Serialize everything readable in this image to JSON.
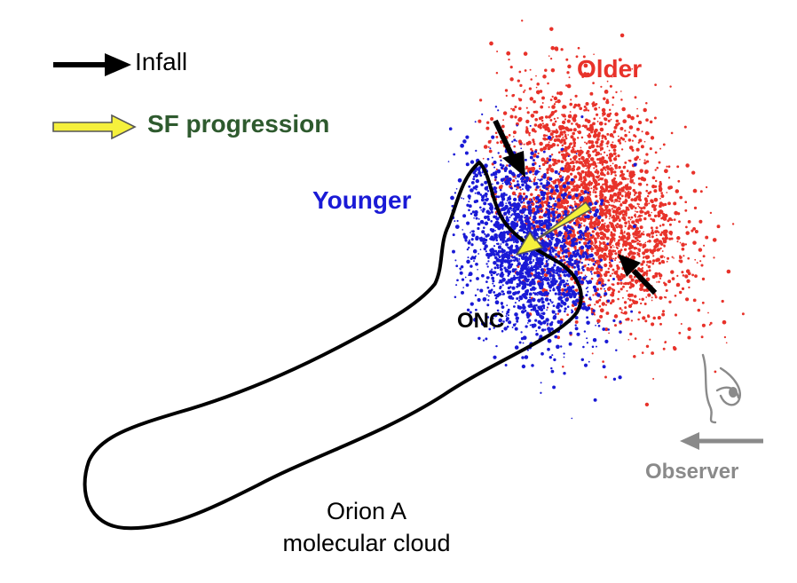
{
  "legend": {
    "infall_label": "Infall",
    "sf_label": "SF progression"
  },
  "labels": {
    "older": "Older",
    "younger": "Younger",
    "onc": "ONC",
    "observer": "Observer",
    "cloud_line1": "Orion A",
    "cloud_line2": "molecular cloud"
  },
  "colors": {
    "older": "#e8322a",
    "younger": "#1a1ad6",
    "sf_legend_text": "#2e5a2e",
    "sf_arrow_fill": "#f5f03c",
    "observer": "#8a8a8a",
    "outline": "#000000"
  },
  "icons": [
    "infall-arrow-icon",
    "sf-progression-arrow-icon",
    "eye-icon",
    "observer-arrow-icon"
  ]
}
